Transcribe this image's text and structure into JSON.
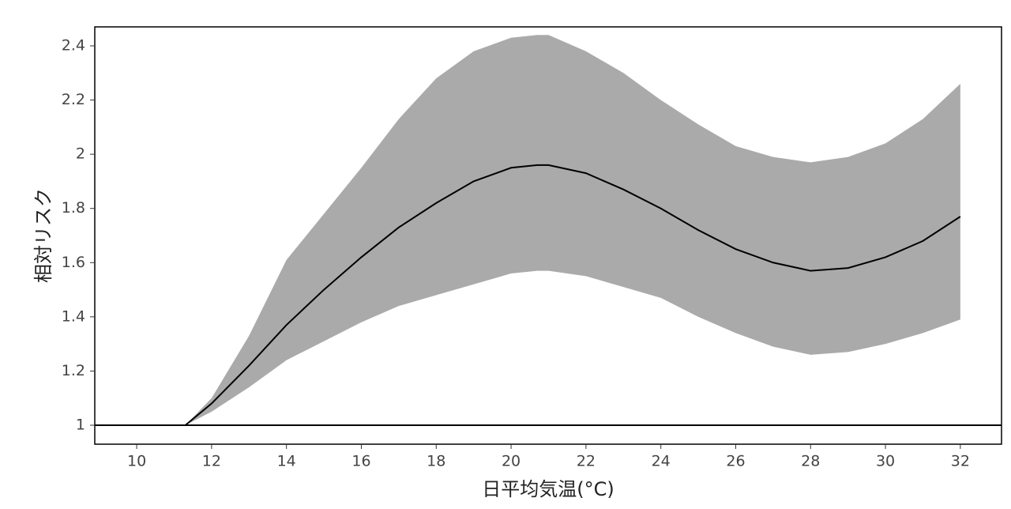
{
  "chart_data": {
    "type": "line",
    "x_label": "日平均気温(°C)",
    "y_label": "相対リスク",
    "x": [
      11.3,
      12,
      13,
      14,
      15,
      16,
      17,
      18,
      19,
      20,
      20.7,
      21,
      22,
      23,
      24,
      25,
      26,
      27,
      28,
      29,
      30,
      31,
      32
    ],
    "series": [
      {
        "color": "#000000",
        "values": [
          1,
          1.08,
          1.22,
          1.37,
          1.5,
          1.62,
          1.73,
          1.82,
          1.9,
          1.95,
          1.96,
          1.96,
          1.93,
          1.87,
          1.8,
          1.72,
          1.65,
          1.6,
          1.57,
          1.58,
          1.62,
          1.68,
          1.77
        ]
      }
    ],
    "band": {
      "color": "#aaaaaa",
      "lower": [
        1,
        1.05,
        1.14,
        1.24,
        1.31,
        1.38,
        1.44,
        1.48,
        1.52,
        1.56,
        1.57,
        1.57,
        1.55,
        1.51,
        1.47,
        1.4,
        1.34,
        1.29,
        1.26,
        1.27,
        1.3,
        1.34,
        1.39
      ],
      "upper": [
        1,
        1.1,
        1.33,
        1.61,
        1.78,
        1.95,
        2.13,
        2.28,
        2.38,
        2.43,
        2.44,
        2.44,
        2.38,
        2.3,
        2.2,
        2.11,
        2.03,
        1.99,
        1.97,
        1.99,
        2.04,
        2.13,
        2.26
      ]
    },
    "reference_line": 1,
    "xlim": [
      8.88,
      33.1
    ],
    "xticks": [
      10,
      12,
      14,
      16,
      18,
      20,
      22,
      24,
      26,
      28,
      30,
      32
    ],
    "ylim": [
      0.93,
      2.47
    ],
    "yticks": [
      1,
      1.2,
      1.4,
      1.6,
      1.8,
      2,
      2.2,
      2.4
    ]
  }
}
